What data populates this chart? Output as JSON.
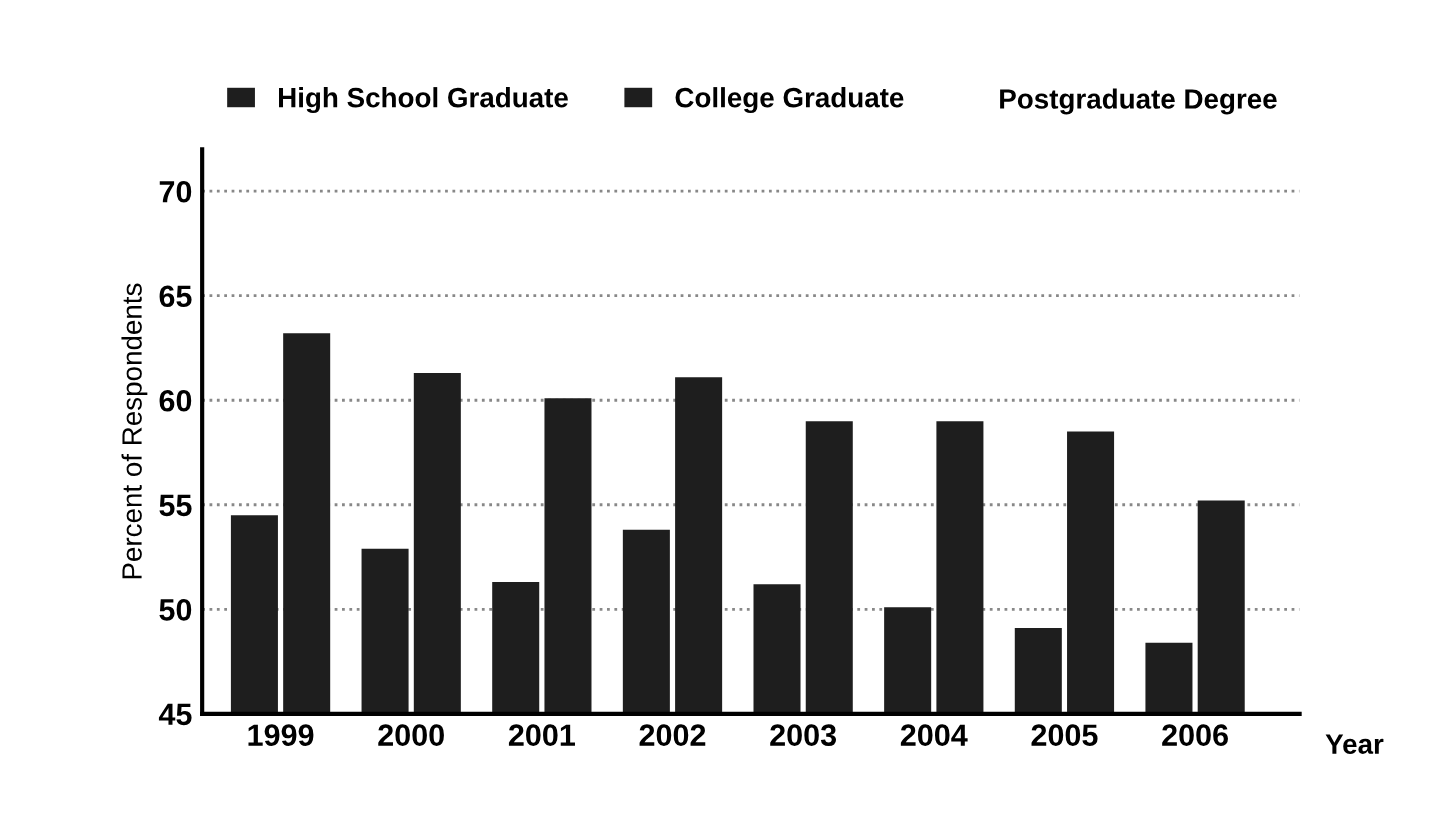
{
  "chart_data": {
    "type": "bar",
    "xlabel": "Year",
    "ylabel": "Percent of Respondents",
    "categories": [
      "1999",
      "2000",
      "2001",
      "2002",
      "2003",
      "2004",
      "2005",
      "2006"
    ],
    "series": [
      {
        "name": "High School Graduate",
        "color": "#1e1e1e",
        "values": [
          54.5,
          52.9,
          51.3,
          53.8,
          51.2,
          50.1,
          49.1,
          48.4
        ]
      },
      {
        "name": "College Graduate",
        "color": "#1e1e1e",
        "values": [
          63.2,
          61.3,
          60.1,
          61.1,
          59.0,
          59.0,
          58.5,
          55.2
        ]
      }
    ],
    "annotations": [
      "Postgraduate Degree"
    ],
    "ylim": [
      45,
      72
    ],
    "yticks": [
      45,
      50,
      55,
      60,
      65,
      70
    ],
    "grid": "y",
    "legend": "top"
  }
}
